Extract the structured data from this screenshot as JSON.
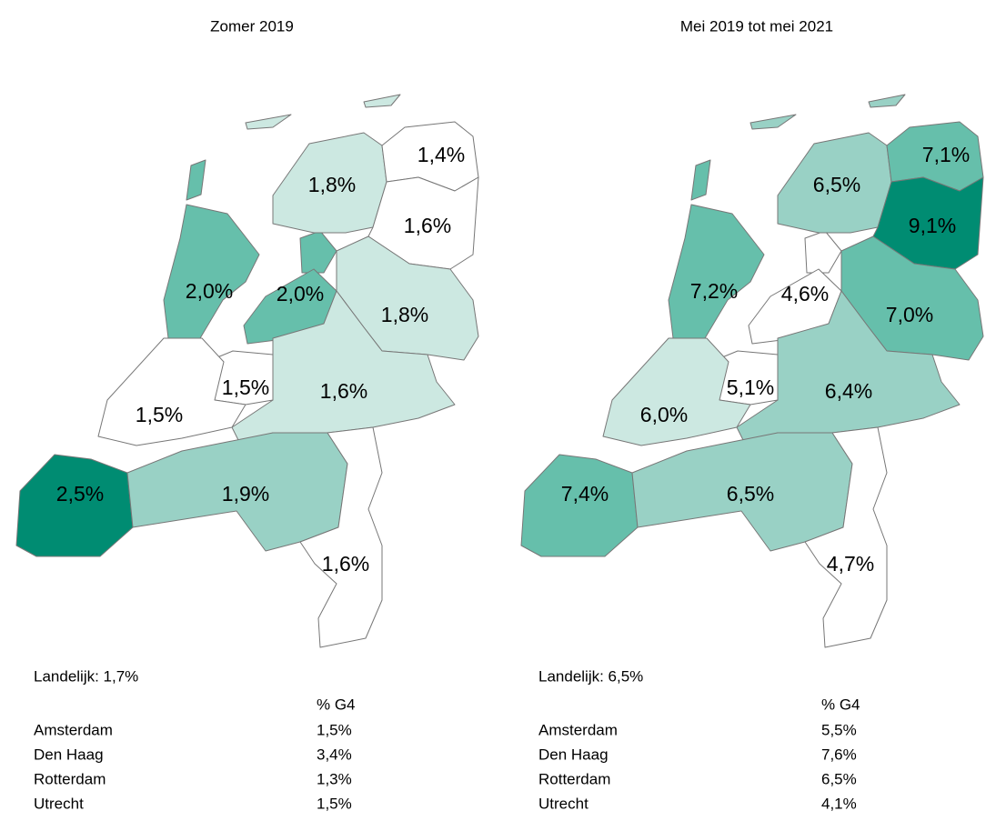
{
  "maps": [
    {
      "title": "Zomer 2019",
      "regions": [
        {
          "label": "2,0%",
          "color": "#66bfab"
        },
        {
          "label": "2,0%",
          "color": "#66bfab"
        },
        {
          "label": "1,8%",
          "color": "#cce8e1"
        },
        {
          "label": "1,4%",
          "color": "#ffffff"
        },
        {
          "label": "1,6%",
          "color": "#ffffff"
        },
        {
          "label": "1,8%",
          "color": "#cce8e1"
        },
        {
          "label": "1,6%",
          "color": "#cce8e1"
        },
        {
          "label": "1,5%",
          "color": "#ffffff"
        },
        {
          "label": "1,5%",
          "color": "#ffffff"
        },
        {
          "label": "2,5%",
          "color": "#008c72"
        },
        {
          "label": "1,9%",
          "color": "#99d1c5"
        },
        {
          "label": "1,6%",
          "color": "#ffffff"
        }
      ],
      "summary": "Landelijk: 1,7%",
      "table": {
        "header": "% G4",
        "rows": [
          [
            "Amsterdam",
            "1,5%"
          ],
          [
            "Den Haag",
            "3,4%"
          ],
          [
            "Rotterdam",
            "1,3%"
          ],
          [
            "Utrecht",
            "1,5%"
          ]
        ]
      }
    },
    {
      "title": "Mei 2019 tot mei 2021",
      "regions": [
        {
          "label": "7,2%",
          "color": "#66bfab"
        },
        {
          "label": "4,6%",
          "color": "#ffffff"
        },
        {
          "label": "6,5%",
          "color": "#99d1c5"
        },
        {
          "label": "7,1%",
          "color": "#66bfab"
        },
        {
          "label": "9,1%",
          "color": "#008c72"
        },
        {
          "label": "7,0%",
          "color": "#66bfab"
        },
        {
          "label": "6,4%",
          "color": "#99d1c5"
        },
        {
          "label": "5,1%",
          "color": "#ffffff"
        },
        {
          "label": "6,0%",
          "color": "#cce8e1"
        },
        {
          "label": "7,4%",
          "color": "#66bfab"
        },
        {
          "label": "6,5%",
          "color": "#99d1c5"
        },
        {
          "label": "4,7%",
          "color": "#ffffff"
        }
      ],
      "summary": "Landelijk: 6,5%",
      "table": {
        "header": "% G4",
        "rows": [
          [
            "Amsterdam",
            "5,5%"
          ],
          [
            "Den Haag",
            "7,6%"
          ],
          [
            "Rotterdam",
            "6,5%"
          ],
          [
            "Utrecht",
            "4,1%"
          ]
        ]
      }
    }
  ]
}
